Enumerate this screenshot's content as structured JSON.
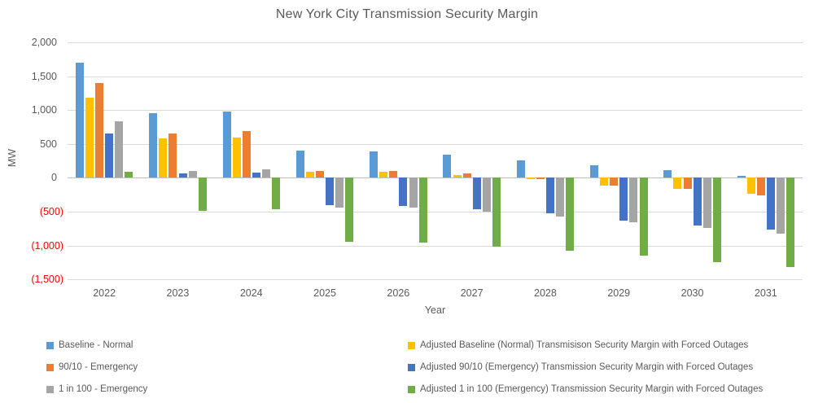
{
  "chart_data": {
    "type": "bar",
    "title": "New York City Transmission Security Margin",
    "xlabel": "Year",
    "ylabel": "MW",
    "ylim": [
      -1500,
      2000
    ],
    "ytick_step": 500,
    "grid": true,
    "legend_position": "bottom-two-columns",
    "background": "#ffffff",
    "gridline_color": "#d9d9d9",
    "zero_axis_color": "#bfbfbf",
    "negative_tick_color": "#ff0000",
    "text_color": "#595959",
    "categories": [
      "2022",
      "2023",
      "2024",
      "2025",
      "2026",
      "2027",
      "2028",
      "2029",
      "2030",
      "2031"
    ],
    "yticks": [
      {
        "value": 2000,
        "label": "2,000",
        "negative": false
      },
      {
        "value": 1500,
        "label": "1,500",
        "negative": false
      },
      {
        "value": 1000,
        "label": "1,000",
        "negative": false
      },
      {
        "value": 500,
        "label": "500",
        "negative": false
      },
      {
        "value": 0,
        "label": "0",
        "negative": false
      },
      {
        "value": -500,
        "label": "(500)",
        "negative": true
      },
      {
        "value": -1000,
        "label": "(1,000)",
        "negative": true
      },
      {
        "value": -1500,
        "label": "(1,500)",
        "negative": true
      }
    ],
    "series": [
      {
        "name": "Baseline - Normal",
        "color": "#5B9BD5",
        "values": [
          1700,
          950,
          975,
          400,
          395,
          340,
          260,
          185,
          110,
          35
        ]
      },
      {
        "name": "Adjusted Baseline (Normal) Transmisison Security Margin with Forced Outages",
        "color": "#FFC000",
        "values": [
          1180,
          580,
          600,
          95,
          90,
          40,
          -20,
          -110,
          -170,
          -240
        ]
      },
      {
        "name": "90/10 - Emergency",
        "color": "#ED7D31",
        "values": [
          1400,
          660,
          690,
          105,
          100,
          60,
          -25,
          -120,
          -170,
          -260
        ]
      },
      {
        "name": "Adjusted 90/10 (Emergency) Transmission Security Margin with Forced Outages",
        "color": "#4472C4",
        "values": [
          650,
          60,
          80,
          -410,
          -415,
          -470,
          -530,
          -630,
          -710,
          -770
        ]
      },
      {
        "name": "1 in 100 - Emergency",
        "color": "#A5A5A5",
        "values": [
          830,
          100,
          125,
          -440,
          -440,
          -500,
          -570,
          -660,
          -740,
          -820
        ]
      },
      {
        "name": "Adjusted 1 in 100 (Emergency) Transmission Security Margin with Forced Outages",
        "color": "#70AD47",
        "values": [
          85,
          -490,
          -460,
          -950,
          -955,
          -1015,
          -1080,
          -1145,
          -1250,
          -1320
        ]
      }
    ],
    "legend_columns": [
      [
        0,
        2,
        4
      ],
      [
        1,
        3,
        5
      ]
    ]
  }
}
